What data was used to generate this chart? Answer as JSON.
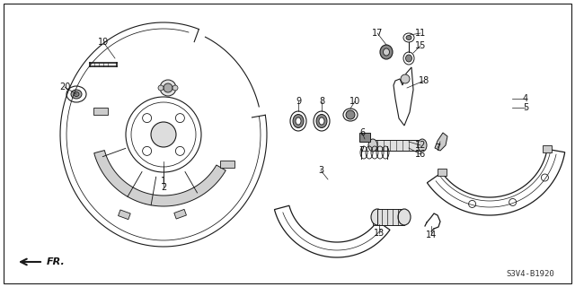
{
  "background_color": "#ffffff",
  "border_color": "#000000",
  "fig_width": 6.4,
  "fig_height": 3.2,
  "dpi": 100,
  "watermark_text": "S3V4-B1920",
  "fr_text": "FR.",
  "line_color": "#1a1a1a",
  "lw": 0.8
}
